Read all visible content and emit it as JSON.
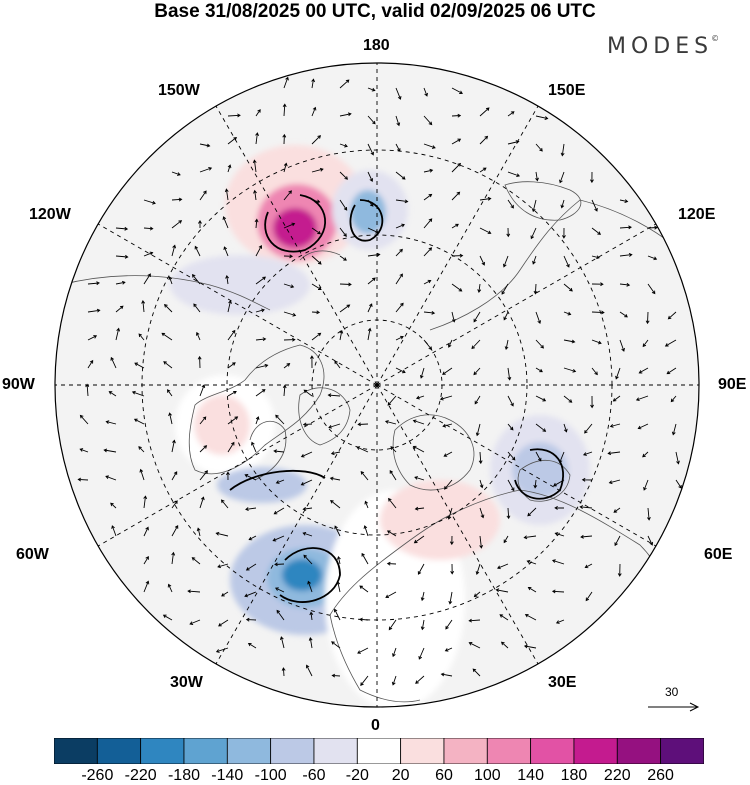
{
  "title": "Base 31/08/2025 00 UTC, valid 02/09/2025 06 UTC",
  "brand": {
    "name": "MODES",
    "mark": "©"
  },
  "longitude_labels": {
    "top": "180",
    "bottom": "0",
    "left": "90W",
    "right": "90E",
    "top_left": "150W",
    "top_right": "150E",
    "upper_left": "120W",
    "upper_right": "120E",
    "lower_left": "60W",
    "lower_right": "60E",
    "bottom_left": "30W",
    "bottom_right": "30E"
  },
  "reference_vector": {
    "label": "30"
  },
  "colorbar": {
    "ticks": [
      "-260",
      "-220",
      "-180",
      "-140",
      "-100",
      "-60",
      "-20",
      "20",
      "60",
      "100",
      "140",
      "180",
      "220",
      "260"
    ],
    "colors": [
      "#0b3d63",
      "#135f97",
      "#2f86c0",
      "#5fa3d1",
      "#8fb9de",
      "#bcc9e6",
      "#e2e2f0",
      "#ffffff",
      "#fadfdf",
      "#f4b3c3",
      "#ee86b2",
      "#e252a5",
      "#c41b8f",
      "#951180",
      "#5e0f7a"
    ]
  },
  "anomalies": [
    {
      "name": "positive-anomaly-gulf-of-alaska",
      "sign": "positive",
      "peak": 220
    },
    {
      "name": "negative-anomaly-bering-sea",
      "sign": "negative",
      "peak": -140
    },
    {
      "name": "negative-anomaly-central-atlantic",
      "sign": "negative",
      "peak": -180
    },
    {
      "name": "positive-anomaly-western-europe",
      "sign": "positive",
      "peak": 100
    },
    {
      "name": "negative-anomaly-western-siberia",
      "sign": "negative",
      "peak": -100
    },
    {
      "name": "positive-anomaly-hudson-bay",
      "sign": "positive",
      "peak": 100
    },
    {
      "name": "negative-anomaly-canada",
      "sign": "negative",
      "peak": -100
    }
  ]
}
